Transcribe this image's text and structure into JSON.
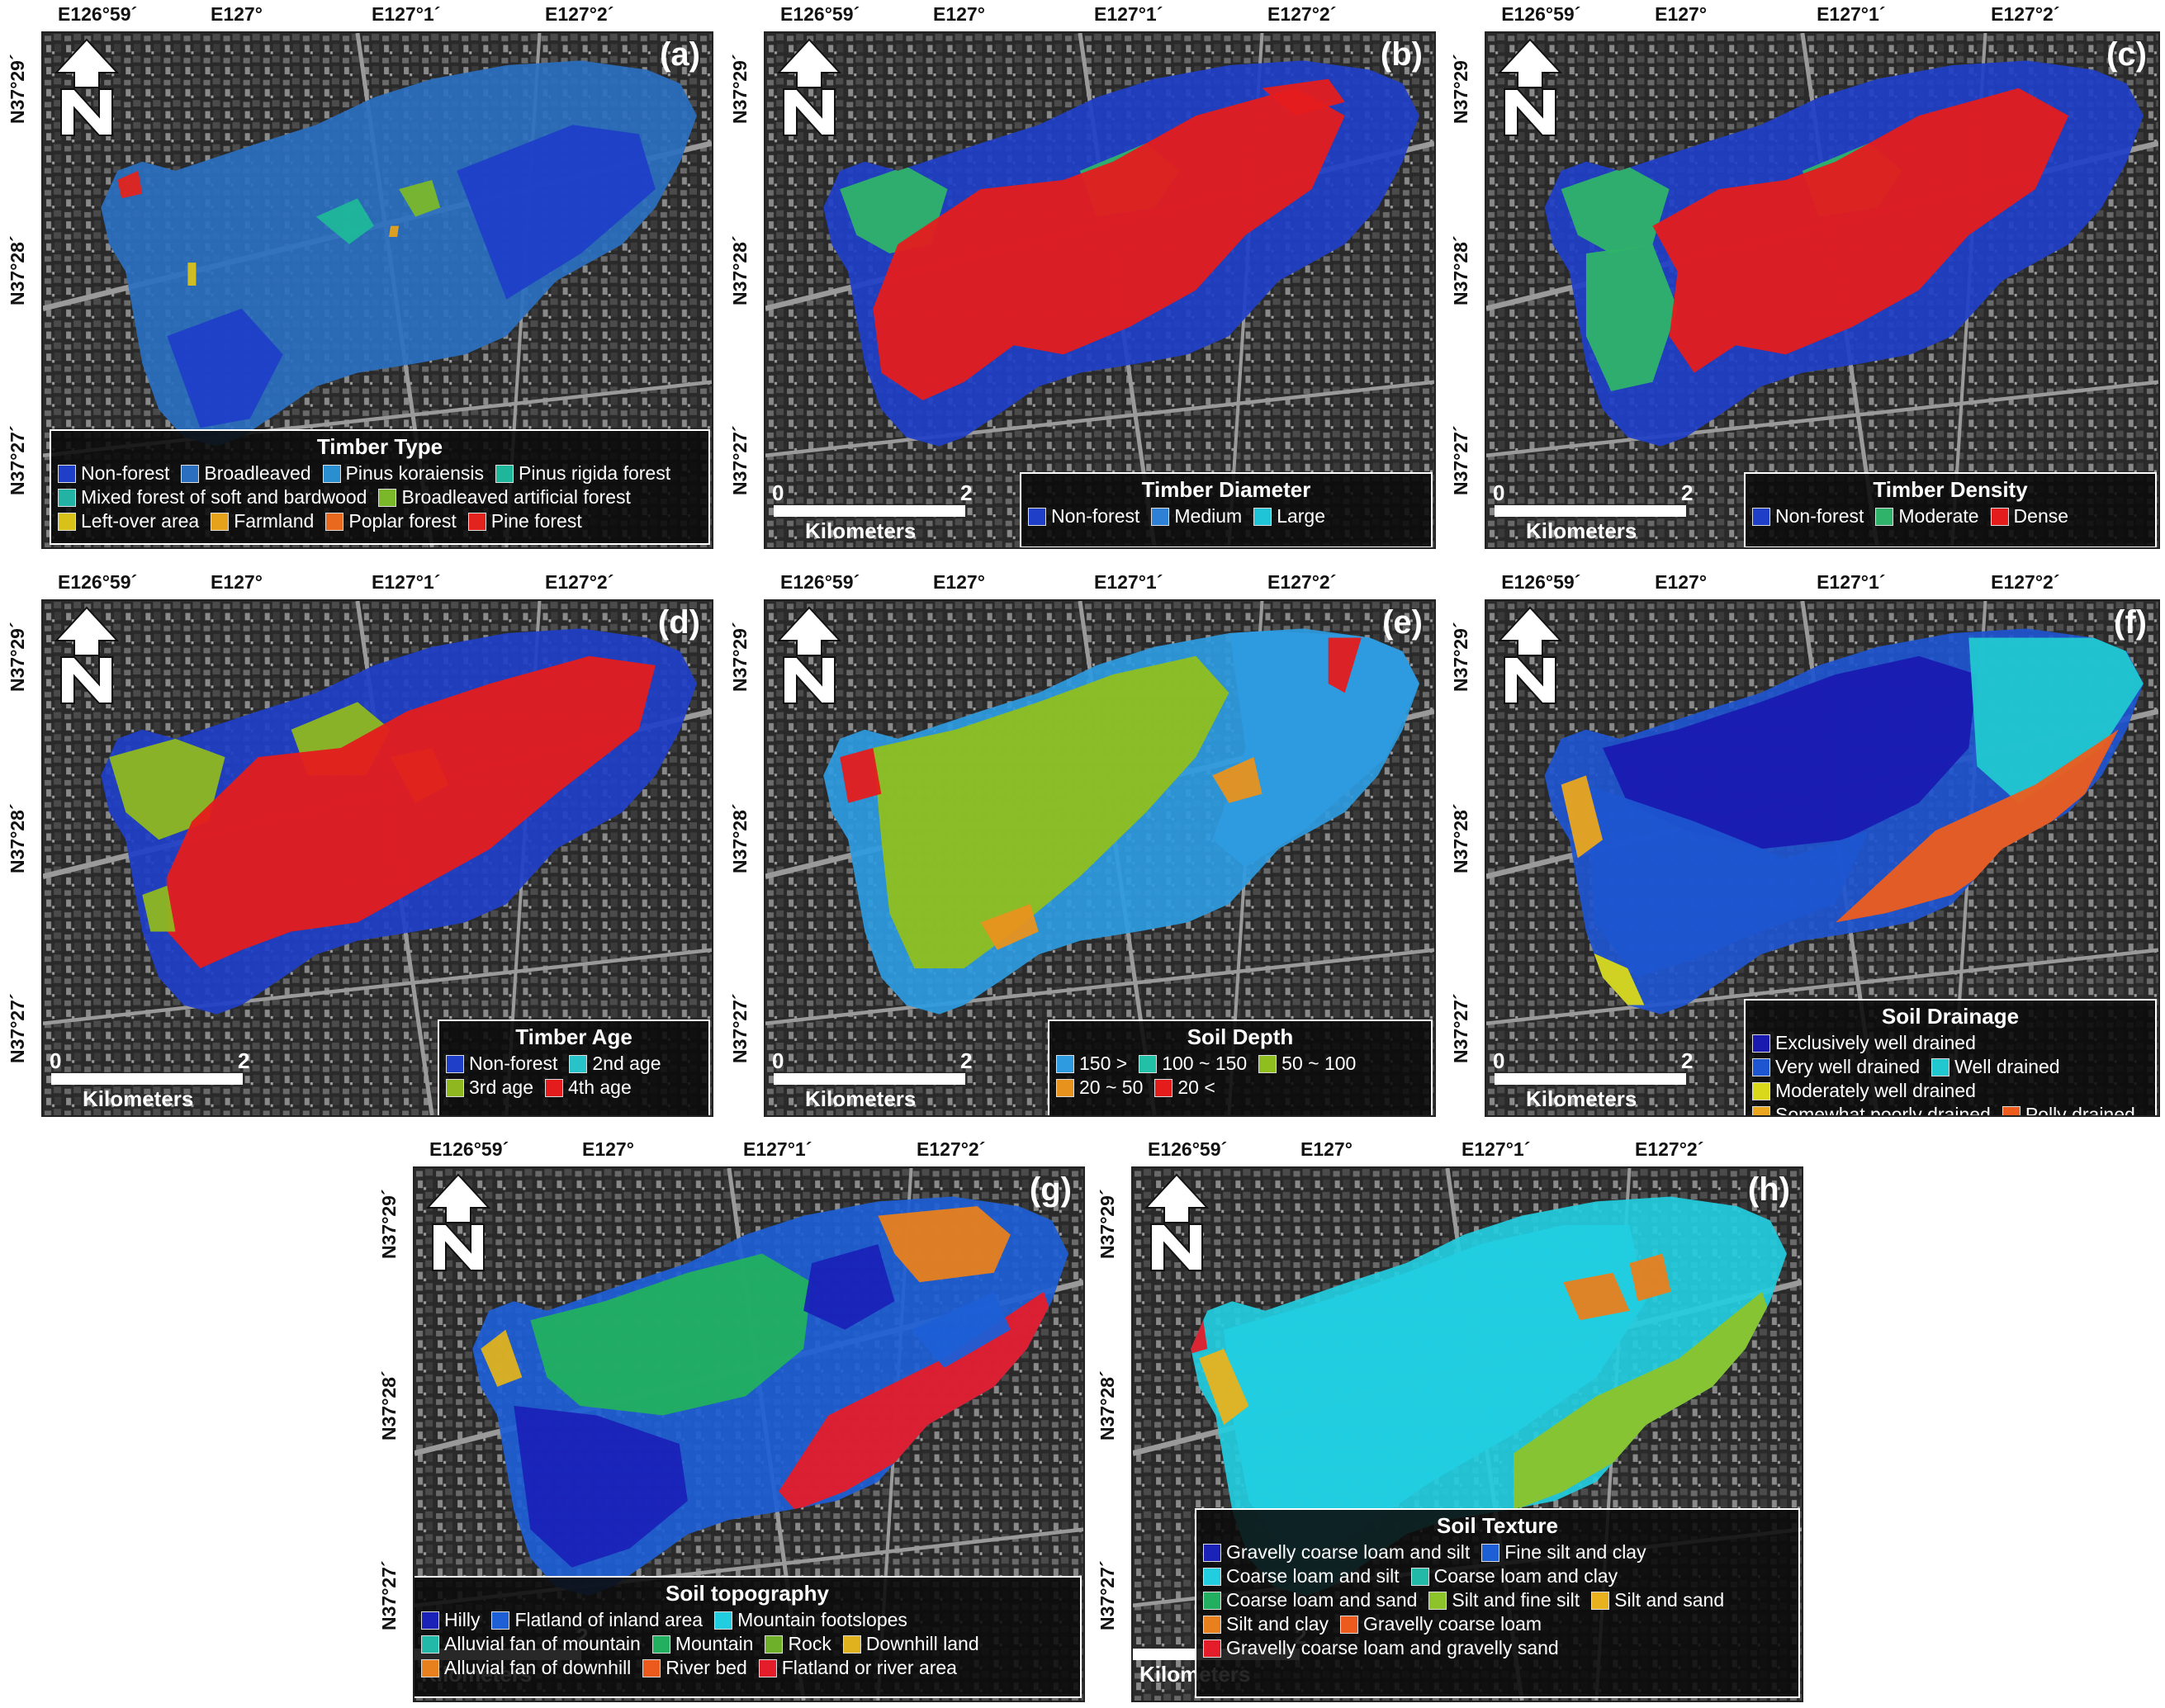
{
  "top_ticks": [
    "E126°59´",
    "E127°",
    "E127°1´",
    "E127°2´"
  ],
  "side_ticks": [
    "N37°29´",
    "N37°28´",
    "N37°27´"
  ],
  "scale": {
    "zero": "0",
    "two": "2",
    "unit": "Kilometers"
  },
  "colors": {
    "non_forest": "#1f3fc8",
    "broadleaved": "#2a6fc0",
    "korai": "#2a8fd0",
    "rigida": "#1fb79a",
    "mixed": "#23b3a5",
    "broad_art": "#7ab82a",
    "leftover": "#d8c21a",
    "farmland": "#e6a21a",
    "poplar": "#e9691e",
    "pine": "#e3241e",
    "medium": "#2e7fd6",
    "large": "#1fc4d6",
    "moderate": "#2fb36a",
    "dense": "#e51c1c",
    "green_age": "#8fb820",
    "cyan_age": "#27c3c9"
  },
  "panels": [
    {
      "id": "a",
      "label": "(a)",
      "legend_title": "Timber Type",
      "legend": [
        {
          "label": "Non-forest",
          "color": "#1f3fc8"
        },
        {
          "label": "Broadleaved",
          "color": "#2a6fc0"
        },
        {
          "label": "Pinus koraiensis",
          "color": "#2a8fd0"
        },
        {
          "label": "Pinus rigida forest",
          "color": "#1fb79a"
        },
        {
          "label": "Mixed forest of soft and bardwood",
          "color": "#23b3a5"
        },
        {
          "label": "Broadleaved artificial forest",
          "color": "#7ab82a"
        },
        {
          "label": "Left-over area",
          "color": "#d8c21a"
        },
        {
          "label": "Farmland",
          "color": "#e6a21a"
        },
        {
          "label": "Poplar forest",
          "color": "#e9691e"
        },
        {
          "label": "Pine forest",
          "color": "#e3241e"
        }
      ]
    },
    {
      "id": "b",
      "label": "(b)",
      "legend_title": "Timber Diameter",
      "legend": [
        {
          "label": "Non-forest",
          "color": "#1f3fc8"
        },
        {
          "label": "Medium",
          "color": "#2e7fd6"
        },
        {
          "label": "Large",
          "color": "#1fc4d6"
        }
      ]
    },
    {
      "id": "c",
      "label": "(c)",
      "legend_title": "Timber Density",
      "legend": [
        {
          "label": "Non-forest",
          "color": "#1f3fc8"
        },
        {
          "label": "Moderate",
          "color": "#2fb36a"
        },
        {
          "label": "Dense",
          "color": "#e51c1c"
        }
      ]
    },
    {
      "id": "d",
      "label": "(d)",
      "legend_title": "Timber Age",
      "legend": [
        {
          "label": "Non-forest",
          "color": "#1f3fc8"
        },
        {
          "label": "2nd age",
          "color": "#27c3c9"
        },
        {
          "label": "3rd age",
          "color": "#8fb820"
        },
        {
          "label": "4th age",
          "color": "#e51c1c"
        }
      ]
    },
    {
      "id": "e",
      "label": "(e)",
      "legend_title": "Soil Depth",
      "legend": [
        {
          "label": "150 >",
          "color": "#2e9be0"
        },
        {
          "label": "100 ~ 150",
          "color": "#23c0a8"
        },
        {
          "label": "50 ~ 100",
          "color": "#8fbf1f"
        },
        {
          "label": "20 ~ 50",
          "color": "#e8921e"
        },
        {
          "label": "20 <",
          "color": "#e51c1c"
        }
      ]
    },
    {
      "id": "f",
      "label": "(f)",
      "legend_title": "Soil Drainage",
      "legend": [
        {
          "label": "Exclusively well drained",
          "color": "#1a1ab0"
        },
        {
          "label": "Very well drained",
          "color": "#1e55d0"
        },
        {
          "label": "Well drained",
          "color": "#22c8d0"
        },
        {
          "label": "Moderately well drained",
          "color": "#d9d81a"
        },
        {
          "label": "Somewhat poorly drained",
          "color": "#eaa61e"
        },
        {
          "label": "Polly drained",
          "color": "#ec5d1e"
        }
      ]
    },
    {
      "id": "g",
      "label": "(g)",
      "legend_title": "Soil topography",
      "legend": [
        {
          "label": "Hilly",
          "color": "#1a22b8"
        },
        {
          "label": "Flatland of inland area",
          "color": "#1e5fd6"
        },
        {
          "label": "Mountain footslopes",
          "color": "#22cde0"
        },
        {
          "label": "Alluvial fan of mountain",
          "color": "#22b9a8"
        },
        {
          "label": "Mountain",
          "color": "#22b060"
        },
        {
          "label": "Rock",
          "color": "#6fb02a"
        },
        {
          "label": "Downhill land",
          "color": "#e0b21e"
        },
        {
          "label": "Alluvial fan of downhill",
          "color": "#e8801e"
        },
        {
          "label": "River bed",
          "color": "#ec5a1e"
        },
        {
          "label": "Flatland or river area",
          "color": "#e51c2a"
        }
      ]
    },
    {
      "id": "h",
      "label": "(h)",
      "legend_title": "Soil Texture",
      "legend": [
        {
          "label": "Gravelly coarse loam and silt",
          "color": "#1a22b8"
        },
        {
          "label": "Fine silt and clay",
          "color": "#1e5fd6"
        },
        {
          "label": "Coarse loam and silt",
          "color": "#22cde0"
        },
        {
          "label": "Coarse loam and clay",
          "color": "#22b9a8"
        },
        {
          "label": "Coarse loam and sand",
          "color": "#22b060"
        },
        {
          "label": "Silt and fine silt",
          "color": "#8cc42a"
        },
        {
          "label": "Silt and sand",
          "color": "#e8b21e"
        },
        {
          "label": "Silt and clay",
          "color": "#e8801e"
        },
        {
          "label": "Gravelly coarse loam",
          "color": "#ec5a1e"
        },
        {
          "label": "Gravelly coarse loam and gravelly sand",
          "color": "#e51c2a"
        }
      ]
    }
  ]
}
